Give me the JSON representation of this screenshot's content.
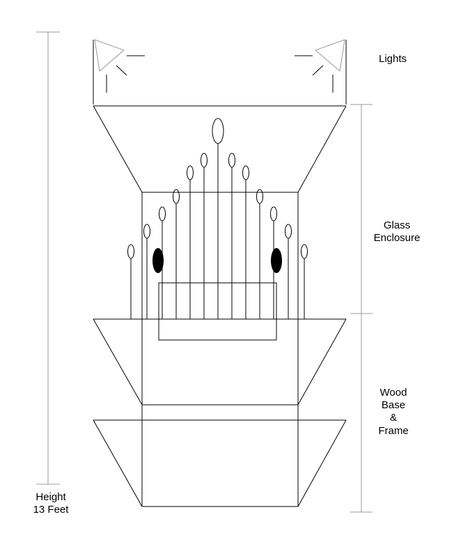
{
  "labels": {
    "lights": "Lights",
    "glass_line1": "Glass",
    "glass_line2": "Enclosure",
    "wood_line1": "Wood",
    "wood_line2": "Base",
    "wood_line3": "&",
    "wood_line4": "Frame",
    "height_line1": "Height",
    "height_line2": "13 Feet"
  },
  "colors": {
    "line": "#000000",
    "dimension_line": "#9a9a9a",
    "filled_bulb": "#000000"
  },
  "icons": [
    "spotlight-left-icon",
    "spotlight-right-icon"
  ]
}
